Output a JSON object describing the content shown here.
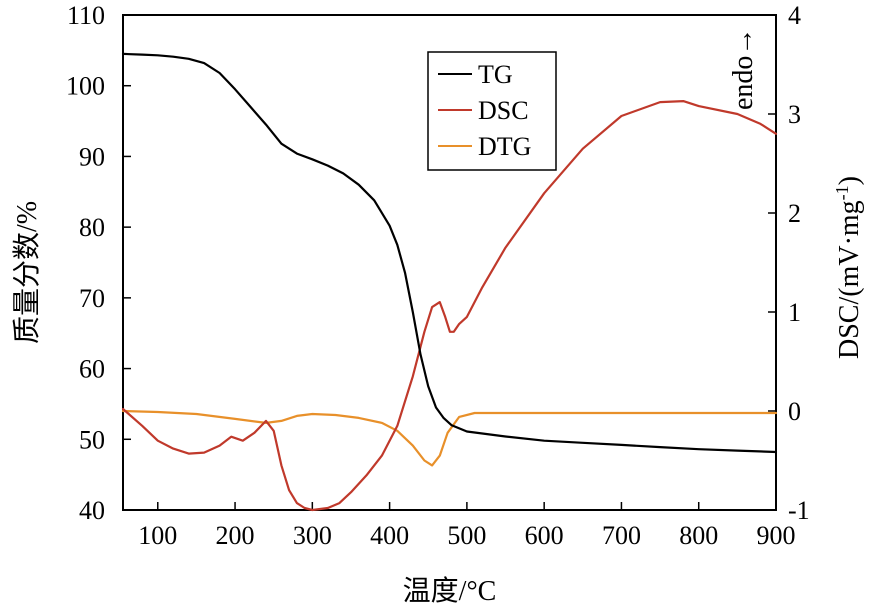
{
  "chart_data": {
    "type": "line",
    "xlabel": "温度/°C",
    "ylabel_left": "质量分数/%",
    "ylabel_right": "DSC/(mV·mg",
    "ylabel_right_sup": "-1",
    "ylabel_right_close": ")",
    "annotation": "endo→",
    "xlim": [
      55,
      900
    ],
    "ylim_left": [
      40,
      110
    ],
    "ylim_right": [
      -1,
      4
    ],
    "x_ticks": [
      100,
      200,
      300,
      400,
      500,
      600,
      700,
      800,
      900
    ],
    "x_tick_labels": [
      "100",
      "200",
      "300",
      "400",
      "500",
      "600",
      "700",
      "800",
      "900"
    ],
    "y_left_ticks": [
      40,
      50,
      60,
      70,
      80,
      90,
      100,
      110
    ],
    "y_left_tick_labels": [
      "40",
      "50",
      "60",
      "70",
      "80",
      "90",
      "100",
      "110"
    ],
    "y_right_ticks": [
      -1,
      0,
      1,
      2,
      3,
      4
    ],
    "y_right_tick_labels": [
      "-1",
      "0",
      "1",
      "2",
      "3",
      "4"
    ],
    "grid": false,
    "legend_position": "top-center",
    "series": [
      {
        "name": "TG",
        "axis": "left",
        "color": "#000000",
        "x": [
          55,
          80,
          100,
          120,
          140,
          160,
          180,
          200,
          220,
          240,
          260,
          280,
          300,
          320,
          340,
          360,
          380,
          400,
          410,
          420,
          430,
          440,
          450,
          460,
          470,
          480,
          500,
          550,
          600,
          650,
          700,
          750,
          800,
          850,
          900
        ],
        "y": [
          104.5,
          104.4,
          104.3,
          104.1,
          103.8,
          103.2,
          101.8,
          99.5,
          97,
          94.5,
          91.8,
          90.4,
          89.6,
          88.7,
          87.6,
          86,
          83.8,
          80.2,
          77.5,
          73.5,
          68,
          62,
          57.5,
          54.5,
          53,
          52,
          51.1,
          50.4,
          49.8,
          49.5,
          49.2,
          48.9,
          48.6,
          48.4,
          48.2
        ]
      },
      {
        "name": "DSC",
        "axis": "right",
        "color": "#c0392b",
        "x": [
          55,
          80,
          100,
          120,
          140,
          160,
          180,
          195,
          210,
          225,
          240,
          250,
          260,
          270,
          280,
          290,
          300,
          310,
          320,
          335,
          350,
          370,
          390,
          410,
          430,
          445,
          455,
          465,
          472,
          478,
          483,
          490,
          500,
          520,
          550,
          600,
          650,
          700,
          750,
          780,
          800,
          850,
          880,
          900
        ],
        "y": [
          0.02,
          -0.15,
          -0.3,
          -0.38,
          -0.43,
          -0.42,
          -0.35,
          -0.26,
          -0.3,
          -0.22,
          -0.1,
          -0.2,
          -0.55,
          -0.8,
          -0.93,
          -0.98,
          -1.0,
          -0.99,
          -0.98,
          -0.93,
          -0.82,
          -0.65,
          -0.45,
          -0.15,
          0.35,
          0.8,
          1.05,
          1.1,
          0.95,
          0.8,
          0.8,
          0.88,
          0.95,
          1.25,
          1.65,
          2.2,
          2.65,
          2.98,
          3.12,
          3.13,
          3.08,
          3.0,
          2.9,
          2.8
        ]
      },
      {
        "name": "DTG",
        "axis": "right",
        "color": "#e8902a",
        "x": [
          55,
          100,
          150,
          200,
          240,
          260,
          280,
          300,
          330,
          360,
          390,
          410,
          430,
          445,
          455,
          465,
          475,
          490,
          510,
          550,
          600,
          700,
          800,
          900
        ],
        "y": [
          0.0,
          -0.01,
          -0.03,
          -0.08,
          -0.12,
          -0.1,
          -0.05,
          -0.03,
          -0.04,
          -0.07,
          -0.12,
          -0.2,
          -0.35,
          -0.5,
          -0.55,
          -0.45,
          -0.22,
          -0.06,
          -0.02,
          -0.02,
          -0.02,
          -0.02,
          -0.02,
          -0.02
        ]
      }
    ]
  }
}
